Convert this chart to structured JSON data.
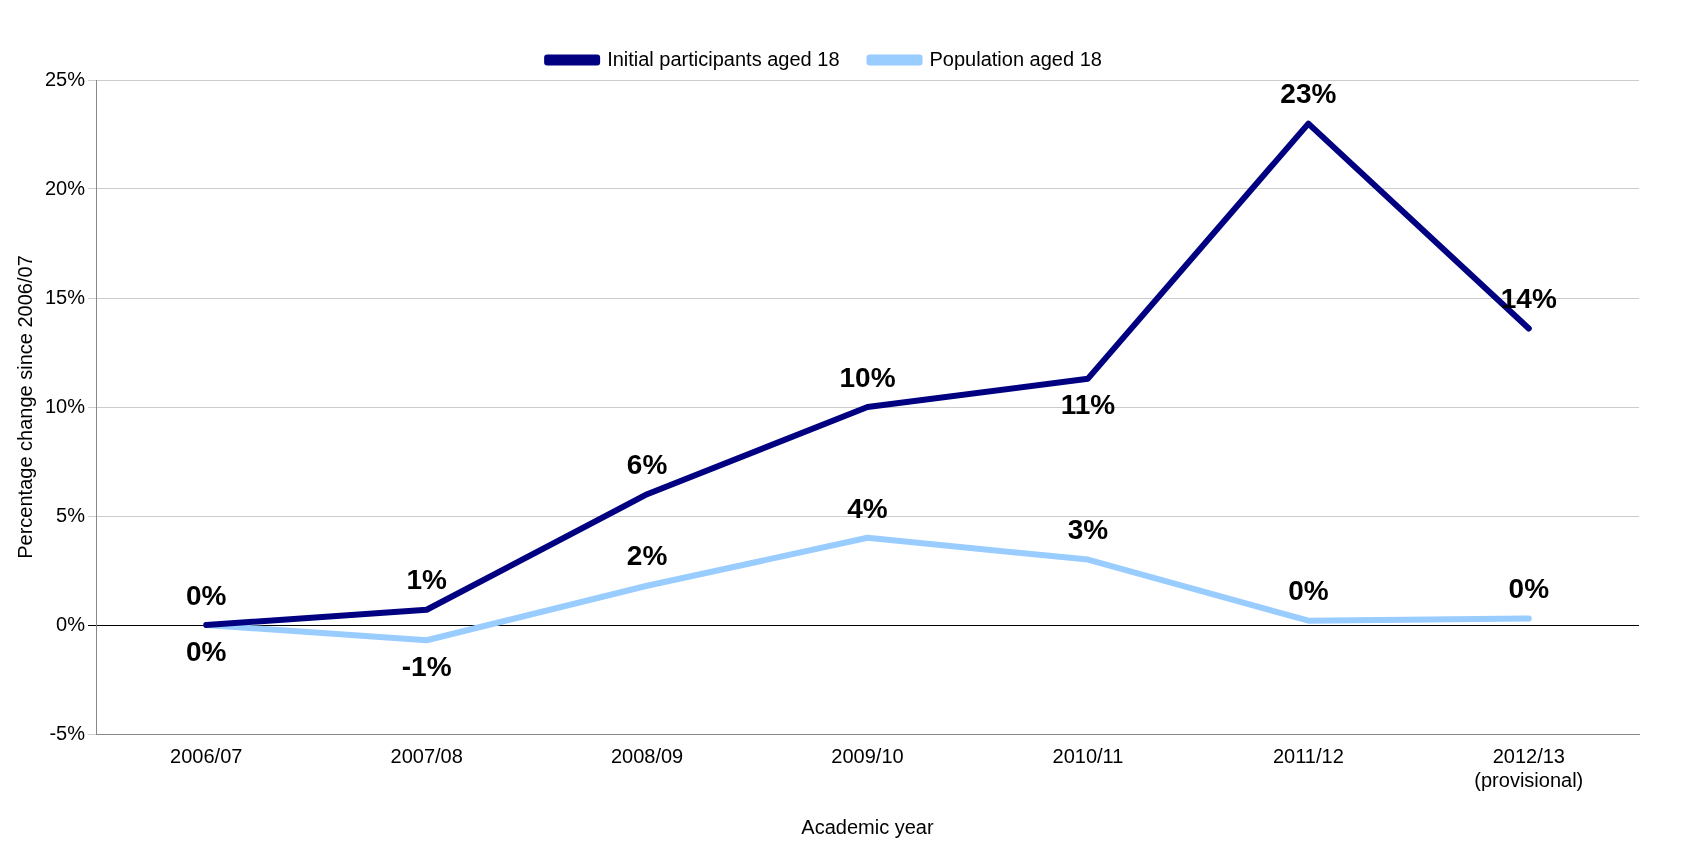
{
  "chart_data": {
    "type": "line",
    "xlabel": "Academic year",
    "ylabel": "Percentage change since 2006/07",
    "categories": [
      "2006/07",
      "2007/08",
      "2008/09",
      "2009/10",
      "2010/11",
      "2011/12",
      "2012/13\n(provisional)"
    ],
    "series": [
      {
        "name": "Initial participants aged 18",
        "color": "#000080",
        "values": [
          0,
          0.7,
          6.0,
          10.0,
          11.3,
          23.0,
          13.6
        ],
        "value_labels": [
          "0%",
          "1%",
          "6%",
          "10%",
          "11%",
          "23%",
          "14%"
        ]
      },
      {
        "name": "Population aged 18",
        "color": "#99ccff",
        "values": [
          0,
          -0.7,
          1.8,
          4.0,
          3.0,
          0.2,
          0.3
        ],
        "value_labels": [
          "0%",
          "-1%",
          "2%",
          "4%",
          "3%",
          "0%",
          "0%"
        ]
      }
    ],
    "ylim": [
      -5,
      25
    ],
    "yticks": [
      {
        "value": -5,
        "label": "-5%"
      },
      {
        "value": 0,
        "label": "0%"
      },
      {
        "value": 5,
        "label": "5%"
      },
      {
        "value": 10,
        "label": "10%"
      },
      {
        "value": 15,
        "label": "15%"
      },
      {
        "value": 20,
        "label": "20%"
      },
      {
        "value": 25,
        "label": "25%"
      }
    ],
    "grid": "y",
    "legend": "top",
    "marker": "none",
    "line_style": "solid"
  }
}
